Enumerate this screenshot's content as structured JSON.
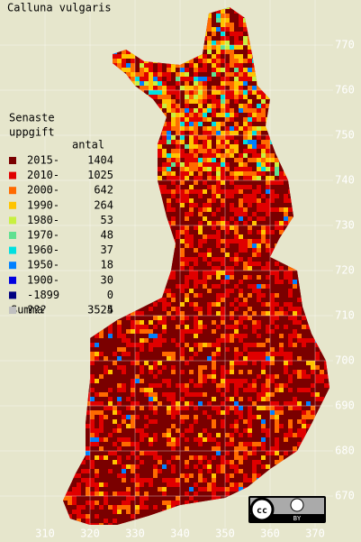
{
  "title": "Calluna vulgaris",
  "legend": {
    "heading": [
      "Senaste",
      "uppgift"
    ],
    "count_header": "antal",
    "rows": [
      {
        "label": "2015-",
        "count": 1404,
        "color": "#7a0000"
      },
      {
        "label": "2010-",
        "count": 1025,
        "color": "#e00000"
      },
      {
        "label": "2000-",
        "count": 642,
        "color": "#ff6a00"
      },
      {
        "label": "1990-",
        "count": 264,
        "color": "#ffc400"
      },
      {
        "label": "1980-",
        "count": 53,
        "color": "#c8f040"
      },
      {
        "label": "1970-",
        "count": 48,
        "color": "#60e090"
      },
      {
        "label": "1960-",
        "count": 37,
        "color": "#00e0e0"
      },
      {
        "label": "1950-",
        "count": 18,
        "color": "#0080ff"
      },
      {
        "label": "1900-",
        "count": 30,
        "color": "#0000e0"
      },
      {
        "label": "-1899",
        "count": 0,
        "color": "#000080"
      },
      {
        "label": "???",
        "count": 4,
        "color": "#c0c0c0"
      }
    ],
    "total_label": "Summa",
    "total": 3525
  },
  "x_labels": [
    310,
    320,
    330,
    340,
    350,
    360,
    370
  ],
  "y_labels": [
    670,
    680,
    690,
    700,
    710,
    720,
    730,
    740,
    750,
    760,
    770
  ],
  "license": {
    "cc": "cc",
    "by": "BY"
  }
}
